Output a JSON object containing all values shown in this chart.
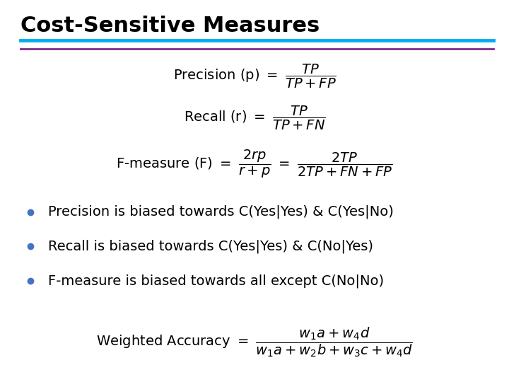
{
  "title": "Cost-Sensitive Measures",
  "title_fontsize": 22,
  "title_color": "#000000",
  "line1_color": "#00AEEF",
  "line2_color": "#7B2D8B",
  "line_thickness1": 3.5,
  "line_thickness2": 2.0,
  "bullet_color": "#4472C4",
  "bullet_text1": "Precision is biased towards C(Yes|Yes) & C(Yes|No)",
  "bullet_text2": "Recall is biased towards C(Yes|Yes) & C(No|Yes)",
  "bullet_text3": "F-measure is biased towards all except C(No|No)",
  "bullet_fontsize": 14,
  "formula_fontsize": 14,
  "formula_color": "#000000",
  "bg_color": "#ffffff"
}
